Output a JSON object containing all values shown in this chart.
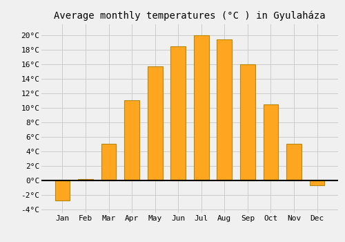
{
  "title": "Average monthly temperatures (°C ) in Gyulaháza",
  "months": [
    "Jan",
    "Feb",
    "Mar",
    "Apr",
    "May",
    "Jun",
    "Jul",
    "Aug",
    "Sep",
    "Oct",
    "Nov",
    "Dec"
  ],
  "values": [
    -2.8,
    0.2,
    5.0,
    11.0,
    15.7,
    18.5,
    20.0,
    19.4,
    16.0,
    10.5,
    5.0,
    -0.7
  ],
  "bar_color": "#FFA620",
  "bar_edge_color": "#B8860B",
  "ylim": [
    -4.5,
    21.5
  ],
  "yticks": [
    -4,
    -2,
    0,
    2,
    4,
    6,
    8,
    10,
    12,
    14,
    16,
    18,
    20
  ],
  "ytick_labels": [
    "-4°C",
    "-2°C",
    "0°C",
    "2°C",
    "4°C",
    "6°C",
    "8°C",
    "10°C",
    "12°C",
    "14°C",
    "16°C",
    "18°C",
    "20°C"
  ],
  "background_color": "#f0f0f0",
  "grid_color": "#cccccc",
  "title_fontsize": 10,
  "tick_fontsize": 8,
  "zero_line_color": "#000000",
  "bar_width": 0.65
}
